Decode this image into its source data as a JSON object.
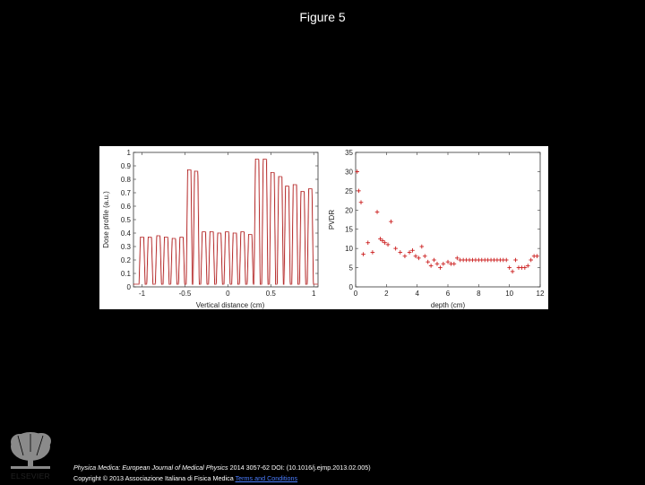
{
  "slide": {
    "title": "Figure 5"
  },
  "footer": {
    "journal": "Physica Medica: European Journal of Medical Physics",
    "citation": " 2014 3057-62 DOI: (10.1016/j.ejmp.2013.02.005)",
    "copyright": "Copyright © 2013 Associazione Italiana di Fisica Medica",
    "terms": "Terms and Conditions"
  },
  "logo": {
    "name": "ELSEVIER"
  },
  "chart_data": [
    {
      "type": "line",
      "xlabel": "Vertical distance (cm)",
      "ylabel": "Dose profile (a.u.)",
      "xlim": [
        -1.1,
        1.05
      ],
      "ylim": [
        0,
        1
      ],
      "xticks": [
        "-1",
        "-0.5",
        "0",
        "0.5",
        "1"
      ],
      "yticks": [
        "0",
        "0.1",
        "0.2",
        "0.3",
        "0.4",
        "0.5",
        "0.6",
        "0.7",
        "0.8",
        "0.9",
        "1"
      ],
      "color": "#b02020",
      "series": [
        {
          "peaks": [
            {
              "center": -1.0,
              "height": 0.37
            },
            {
              "center": -0.91,
              "height": 0.37
            },
            {
              "center": -0.81,
              "height": 0.38
            },
            {
              "center": -0.72,
              "height": 0.37
            },
            {
              "center": -0.63,
              "height": 0.36
            },
            {
              "center": -0.54,
              "height": 0.37
            },
            {
              "center": -0.45,
              "height": 0.87
            },
            {
              "center": -0.37,
              "height": 0.86
            },
            {
              "center": -0.28,
              "height": 0.41
            },
            {
              "center": -0.19,
              "height": 0.41
            },
            {
              "center": -0.1,
              "height": 0.4
            },
            {
              "center": -0.01,
              "height": 0.41
            },
            {
              "center": 0.08,
              "height": 0.4
            },
            {
              "center": 0.17,
              "height": 0.41
            },
            {
              "center": 0.26,
              "height": 0.39
            },
            {
              "center": 0.34,
              "height": 0.95
            },
            {
              "center": 0.43,
              "height": 0.95
            },
            {
              "center": 0.52,
              "height": 0.85
            },
            {
              "center": 0.61,
              "height": 0.82
            },
            {
              "center": 0.69,
              "height": 0.75
            },
            {
              "center": 0.78,
              "height": 0.76
            },
            {
              "center": 0.87,
              "height": 0.71
            },
            {
              "center": 0.96,
              "height": 0.73
            }
          ],
          "width": 0.055,
          "valley": 0.02
        }
      ]
    },
    {
      "type": "scatter",
      "xlabel": "depth (cm)",
      "ylabel": "PVDR",
      "xlim": [
        0,
        12
      ],
      "ylim": [
        0,
        35
      ],
      "xticks": [
        "0",
        "2",
        "4",
        "6",
        "8",
        "10",
        "12"
      ],
      "yticks": [
        "0",
        "5",
        "10",
        "15",
        "20",
        "25",
        "30",
        "35"
      ],
      "color": "#cc2020",
      "series": [
        {
          "x": [
            0.1,
            0.2,
            0.35,
            0.5,
            0.8,
            1.1,
            1.4,
            1.6,
            1.75,
            1.9,
            2.1,
            2.3,
            2.6,
            2.9,
            3.2,
            3.5,
            3.7,
            3.9,
            4.1,
            4.3,
            4.5,
            4.7,
            4.9,
            5.1,
            5.3,
            5.5,
            5.7,
            6.0,
            6.2,
            6.4,
            6.6,
            6.8,
            7.0,
            7.2,
            7.4,
            7.6,
            7.8,
            8.0,
            8.2,
            8.4,
            8.6,
            8.8,
            9.0,
            9.2,
            9.4,
            9.6,
            9.8,
            10.0,
            10.2,
            10.4,
            10.6,
            10.8,
            11.0,
            11.2,
            11.4,
            11.6,
            11.8
          ],
          "y": [
            30,
            25,
            22,
            8.5,
            11.5,
            9,
            19.5,
            12.5,
            12,
            11.5,
            11,
            17,
            10,
            9,
            8,
            9,
            9.5,
            8,
            7.5,
            10.5,
            8,
            6.5,
            5.5,
            7,
            6,
            5,
            6,
            6.5,
            6,
            6,
            7.5,
            7,
            7,
            7,
            7,
            7,
            7,
            7,
            7,
            7,
            7,
            7,
            7,
            7,
            7,
            7,
            7,
            5,
            4,
            7,
            5,
            5,
            5,
            5.5,
            7,
            8,
            8
          ]
        }
      ]
    }
  ]
}
